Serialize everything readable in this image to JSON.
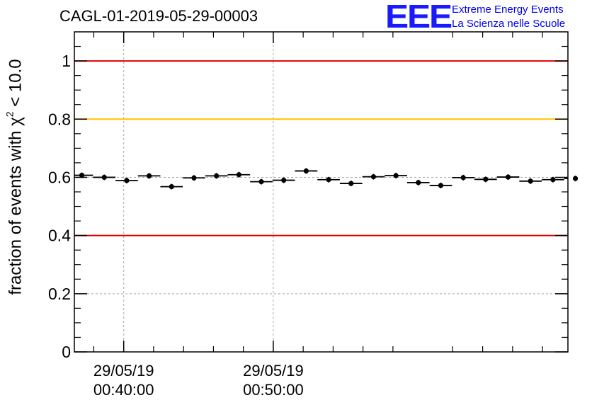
{
  "chart_data": {
    "type": "scatter",
    "title": "CAGL-01-2019-05-29-00003",
    "ylabel": {
      "prefix": "fraction of events with ",
      "chi": "χ",
      "power": "2",
      "suffix": " < 10.0"
    },
    "xlabel": "",
    "ylim": [
      0,
      1.1
    ],
    "yticks": [
      {
        "value": 0,
        "label": "0"
      },
      {
        "value": 0.2,
        "label": "0.2"
      },
      {
        "value": 0.4,
        "label": "0.4"
      },
      {
        "value": 0.6,
        "label": "0.6"
      },
      {
        "value": 0.8,
        "label": "0.8"
      },
      {
        "value": 1,
        "label": "1"
      }
    ],
    "xlim": [
      "00:36:42",
      "01:09:42"
    ],
    "xticks": [
      {
        "value": "00:40:00",
        "date": "29/05/19",
        "time": "00:40:00"
      },
      {
        "value": "00:50:00",
        "date": "29/05/19",
        "time": "00:50:00"
      }
    ],
    "grid": true,
    "reference_lines": [
      {
        "y": 1.0,
        "color": "#e00000"
      },
      {
        "y": 0.8,
        "color": "#ffc000"
      },
      {
        "y": 0.4,
        "color": "#e00000"
      }
    ],
    "points": [
      {
        "x": "00:37:12",
        "y": 0.607
      },
      {
        "x": "00:38:42",
        "y": 0.6
      },
      {
        "x": "00:40:12",
        "y": 0.589
      },
      {
        "x": "00:41:42",
        "y": 0.605
      },
      {
        "x": "00:43:12",
        "y": 0.568
      },
      {
        "x": "00:44:42",
        "y": 0.598
      },
      {
        "x": "00:46:12",
        "y": 0.605
      },
      {
        "x": "00:47:42",
        "y": 0.609
      },
      {
        "x": "00:49:12",
        "y": 0.585
      },
      {
        "x": "00:50:42",
        "y": 0.59
      },
      {
        "x": "00:52:12",
        "y": 0.622
      },
      {
        "x": "00:53:42",
        "y": 0.592
      },
      {
        "x": "00:55:12",
        "y": 0.579
      },
      {
        "x": "00:56:42",
        "y": 0.602
      },
      {
        "x": "00:58:12",
        "y": 0.606
      },
      {
        "x": "00:59:42",
        "y": 0.582
      },
      {
        "x": "01:01:12",
        "y": 0.572
      },
      {
        "x": "01:02:42",
        "y": 0.599
      },
      {
        "x": "01:04:12",
        "y": 0.593
      },
      {
        "x": "01:05:42",
        "y": 0.601
      },
      {
        "x": "01:07:12",
        "y": 0.587
      },
      {
        "x": "01:08:42",
        "y": 0.592
      },
      {
        "x": "01:10:12",
        "y": 0.596
      }
    ]
  },
  "logo": {
    "mark": "EEE",
    "line1": "Extreme Energy Events",
    "line2": "La Scienza nelle Scuole"
  }
}
